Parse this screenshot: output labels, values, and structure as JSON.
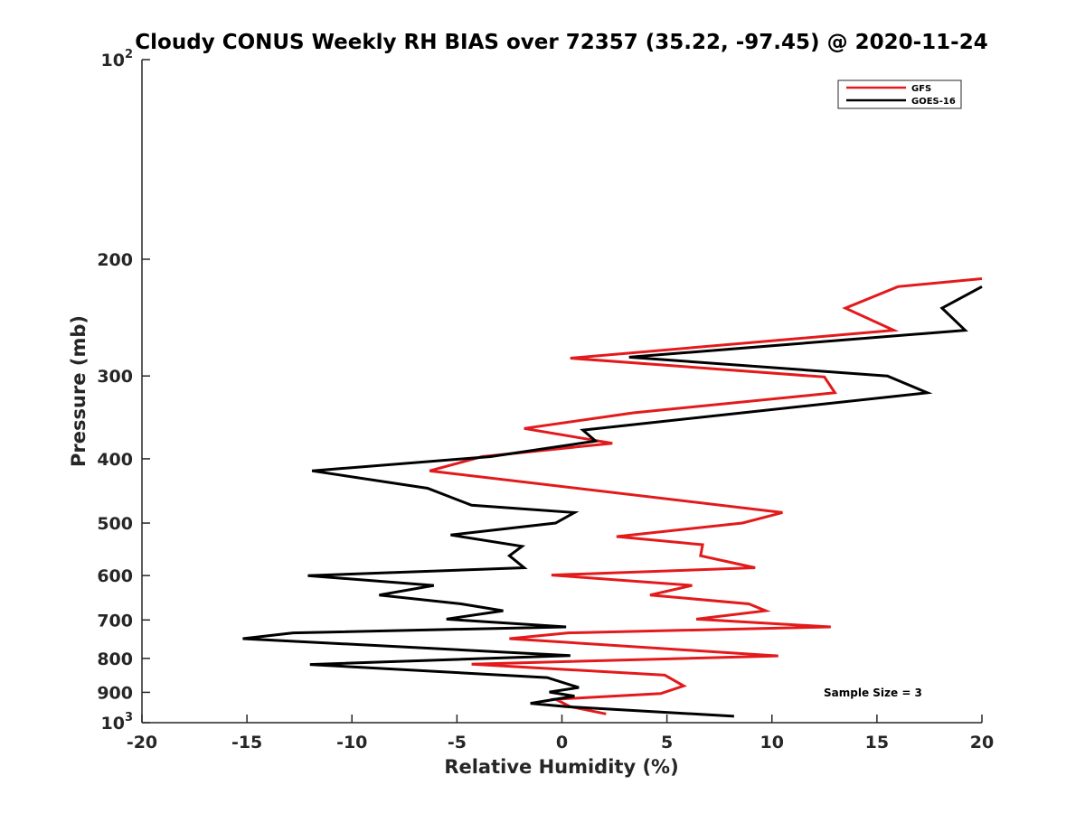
{
  "chart_data": {
    "type": "line",
    "title": "Cloudy CONUS Weekly RH BIAS over 72357 (35.22, -97.45) @ 2020-11-24",
    "xlabel": "Relative Humidity (%)",
    "ylabel": "Pressure (mb)",
    "xlim": [
      -20,
      20
    ],
    "ylim": [
      100,
      1000
    ],
    "y_scale": "log",
    "y_reversed": true,
    "grid": false,
    "legend_position": "top-right",
    "x_ticks": [
      {
        "value": -20,
        "label": "-20"
      },
      {
        "value": -15,
        "label": "-15"
      },
      {
        "value": -10,
        "label": "-10"
      },
      {
        "value": -5,
        "label": "-5"
      },
      {
        "value": 0,
        "label": "0"
      },
      {
        "value": 5,
        "label": "5"
      },
      {
        "value": 10,
        "label": "10"
      },
      {
        "value": 15,
        "label": "15"
      },
      {
        "value": 20,
        "label": "20"
      }
    ],
    "y_ticks": [
      {
        "value": 100,
        "label": "10",
        "exp": "2"
      },
      {
        "value": 200,
        "label": "200"
      },
      {
        "value": 300,
        "label": "300"
      },
      {
        "value": 400,
        "label": "400"
      },
      {
        "value": 500,
        "label": "500"
      },
      {
        "value": 600,
        "label": "600"
      },
      {
        "value": 700,
        "label": "700"
      },
      {
        "value": 800,
        "label": "800"
      },
      {
        "value": 900,
        "label": "900"
      },
      {
        "value": 1000,
        "label": "10",
        "exp": "3"
      }
    ],
    "annotation": "Sample Size = 3",
    "series": [
      {
        "name": "GFS",
        "color": "#e31a1c",
        "points": [
          [
            20.0,
            214
          ],
          [
            16.0,
            220
          ],
          [
            13.5,
            237
          ],
          [
            15.8,
            256
          ],
          [
            0.4,
            282
          ],
          [
            12.5,
            301
          ],
          [
            13.0,
            318
          ],
          [
            3.4,
            341
          ],
          [
            -1.8,
            360
          ],
          [
            2.4,
            379
          ],
          [
            -3.8,
            397
          ],
          [
            -6.3,
            417
          ],
          [
            10.5,
            482
          ],
          [
            8.6,
            500
          ],
          [
            2.6,
            524
          ],
          [
            6.7,
            539
          ],
          [
            6.6,
            560
          ],
          [
            9.2,
            584
          ],
          [
            -0.5,
            599
          ],
          [
            6.2,
            621
          ],
          [
            4.2,
            642
          ],
          [
            8.9,
            662
          ],
          [
            9.7,
            678
          ],
          [
            6.4,
            698
          ],
          [
            12.8,
            717
          ],
          [
            0.3,
            732
          ],
          [
            -2.5,
            747
          ],
          [
            10.3,
            793
          ],
          [
            -4.3,
            816
          ],
          [
            4.9,
            848
          ],
          [
            5.8,
            880
          ],
          [
            4.7,
            904
          ],
          [
            -0.3,
            922
          ],
          [
            0.4,
            946
          ],
          [
            2.1,
            970
          ]
        ]
      },
      {
        "name": "GOES-16",
        "color": "#000000",
        "points": [
          [
            20.0,
            220
          ],
          [
            18.1,
            237
          ],
          [
            19.2,
            256
          ],
          [
            3.2,
            281
          ],
          [
            15.5,
            300
          ],
          [
            17.4,
            318
          ],
          [
            1.0,
            362
          ],
          [
            1.6,
            376
          ],
          [
            -3.4,
            397
          ],
          [
            -11.9,
            417
          ],
          [
            -6.4,
            443
          ],
          [
            -4.3,
            470
          ],
          [
            0.6,
            482
          ],
          [
            -0.3,
            500
          ],
          [
            -5.3,
            521
          ],
          [
            -1.9,
            542
          ],
          [
            -2.5,
            560
          ],
          [
            -1.8,
            584
          ],
          [
            -12.1,
            600
          ],
          [
            -6.1,
            621
          ],
          [
            -8.7,
            642
          ],
          [
            -4.8,
            662
          ],
          [
            -2.8,
            678
          ],
          [
            -5.5,
            698
          ],
          [
            0.2,
            717
          ],
          [
            -12.8,
            732
          ],
          [
            -15.2,
            747
          ],
          [
            0.4,
            792
          ],
          [
            -12.0,
            817
          ],
          [
            -0.7,
            855
          ],
          [
            0.8,
            885
          ],
          [
            -0.6,
            899
          ],
          [
            0.6,
            912
          ],
          [
            -1.5,
            935
          ],
          [
            0.2,
            946
          ],
          [
            8.2,
            978
          ]
        ]
      }
    ]
  }
}
